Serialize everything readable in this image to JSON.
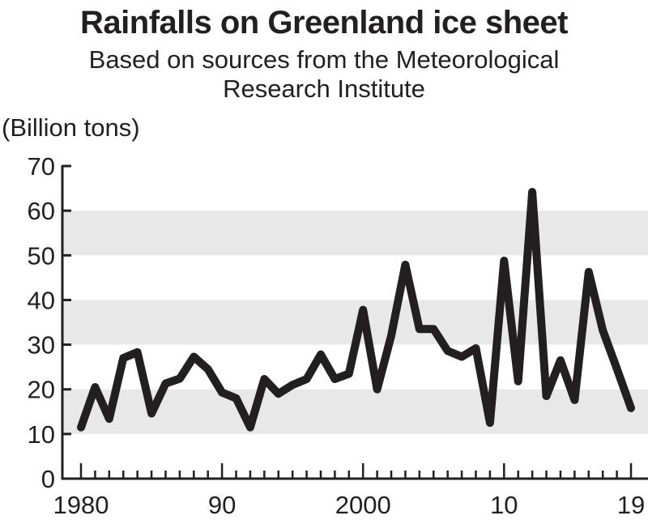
{
  "chart_data": {
    "type": "line",
    "title": "Rainfalls on Greenland ice sheet",
    "subtitle_lines": [
      "Based on sources from the Meteorological",
      "Research Institute"
    ],
    "ylabel": "(Billion tons)",
    "xlabel": "",
    "ylim": [
      0,
      70
    ],
    "xlim": [
      1980,
      2019
    ],
    "yticks": [
      0,
      10,
      20,
      30,
      40,
      50,
      60,
      70
    ],
    "ytick_labels": [
      "0",
      "10",
      "20",
      "30",
      "40",
      "50",
      "60",
      "70"
    ],
    "xtick_major": [
      1980,
      1990,
      2000,
      2010,
      2019
    ],
    "xtick_labels": [
      "1980",
      "90",
      "2000",
      "10",
      "19"
    ],
    "grid": "alternating horizontal bands (10-20, 30-40, 50-60)",
    "band_color": "#e8e8e8",
    "line_color": "#231f20",
    "legend": "none",
    "series": [
      {
        "name": "Rainfall",
        "x": [
          1980,
          1981,
          1982,
          1983,
          1984,
          1985,
          1986,
          1987,
          1988,
          1989,
          1990,
          1991,
          1992,
          1993,
          1994,
          1995,
          1996,
          1997,
          1998,
          1999,
          2000,
          2001,
          2002,
          2003,
          2004,
          2005,
          2006,
          2007,
          2008,
          2009,
          2010,
          2011,
          2012,
          2013,
          2014,
          2015,
          2016,
          2017,
          2018,
          2019
        ],
        "values": [
          11.5,
          20.5,
          13.4,
          27,
          28.3,
          14.6,
          21.3,
          22.4,
          27.3,
          24.5,
          19.3,
          18,
          11.5,
          22.3,
          19,
          21,
          22.3,
          27.8,
          22.3,
          23.5,
          37.8,
          20,
          32,
          47.9,
          33.5,
          33.5,
          28.6,
          27.3,
          29.2,
          12.5,
          48.8,
          21.8,
          64.2,
          18.5,
          26.5,
          17.6,
          46.3,
          33.2,
          24.6,
          15.8
        ]
      }
    ]
  }
}
